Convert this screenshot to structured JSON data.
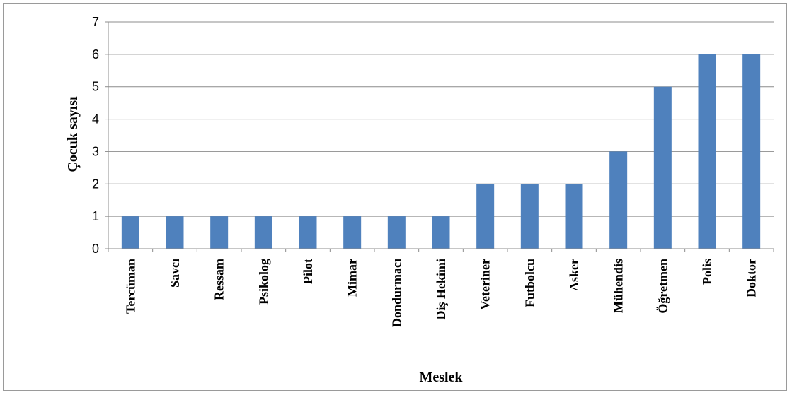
{
  "chart_data": {
    "type": "bar",
    "xlabel": "Meslek",
    "ylabel": "Çocuk sayısı",
    "ylim": [
      0,
      7
    ],
    "yticks": [
      0,
      1,
      2,
      3,
      4,
      5,
      6,
      7
    ],
    "grid": true,
    "legend": "none",
    "bar_color": "#4F81BD",
    "categories": [
      "Tercüman",
      "Savcı",
      "Ressam",
      "Psikolog",
      "Pilot",
      "Mimar",
      "Dondurmacı",
      "Diş Hekimi",
      "Veteriner",
      "Futbolcu",
      "Asker",
      "Mühendis",
      "Öğretmen",
      "Polis",
      "Doktor"
    ],
    "values": [
      1,
      1,
      1,
      1,
      1,
      1,
      1,
      1,
      2,
      2,
      2,
      3,
      5,
      6,
      6
    ]
  }
}
